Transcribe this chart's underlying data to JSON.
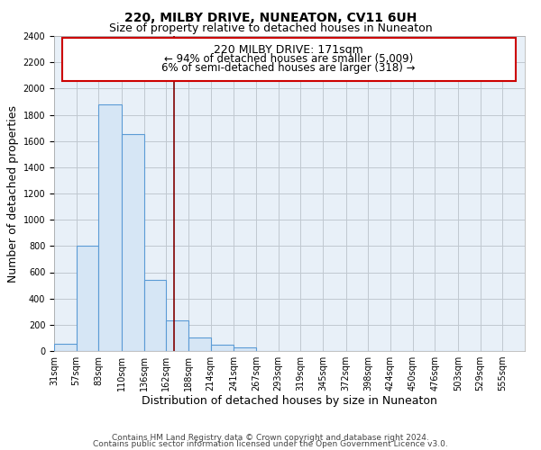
{
  "title": "220, MILBY DRIVE, NUNEATON, CV11 6UH",
  "subtitle": "Size of property relative to detached houses in Nuneaton",
  "xlabel": "Distribution of detached houses by size in Nuneaton",
  "ylabel": "Number of detached properties",
  "bar_left_edges": [
    31,
    57,
    83,
    110,
    136,
    162,
    188,
    214,
    241,
    267,
    293,
    319,
    345,
    372,
    398,
    424,
    450,
    476,
    503,
    529
  ],
  "bar_widths": [
    26,
    26,
    27,
    26,
    26,
    26,
    26,
    27,
    26,
    26,
    26,
    26,
    27,
    26,
    26,
    26,
    26,
    27,
    26,
    26
  ],
  "bar_heights": [
    55,
    800,
    1880,
    1650,
    540,
    235,
    105,
    50,
    30,
    0,
    0,
    0,
    0,
    0,
    0,
    0,
    0,
    0,
    0,
    0
  ],
  "bar_color": "#d6e6f5",
  "bar_edgecolor": "#5b9bd5",
  "vline_x": 171,
  "vline_color": "#800000",
  "ylim": [
    0,
    2400
  ],
  "yticks": [
    0,
    200,
    400,
    600,
    800,
    1000,
    1200,
    1400,
    1600,
    1800,
    2000,
    2200,
    2400
  ],
  "xlim": [
    31,
    581
  ],
  "xtick_labels": [
    "31sqm",
    "57sqm",
    "83sqm",
    "110sqm",
    "136sqm",
    "162sqm",
    "188sqm",
    "214sqm",
    "241sqm",
    "267sqm",
    "293sqm",
    "319sqm",
    "345sqm",
    "372sqm",
    "398sqm",
    "424sqm",
    "450sqm",
    "476sqm",
    "503sqm",
    "529sqm",
    "555sqm"
  ],
  "xtick_positions": [
    31,
    57,
    83,
    110,
    136,
    162,
    188,
    214,
    241,
    267,
    293,
    319,
    345,
    372,
    398,
    424,
    450,
    476,
    503,
    529,
    555
  ],
  "annotation_title": "220 MILBY DRIVE: 171sqm",
  "annotation_line1": "← 94% of detached houses are smaller (5,009)",
  "annotation_line2": "6% of semi-detached houses are larger (318) →",
  "footer_line1": "Contains HM Land Registry data © Crown copyright and database right 2024.",
  "footer_line2": "Contains public sector information licensed under the Open Government Licence v3.0.",
  "bg_color": "#ffffff",
  "plot_bg_color": "#e8f0f8",
  "grid_color": "#c0c8d0",
  "title_fontsize": 10,
  "subtitle_fontsize": 9,
  "axis_label_fontsize": 9,
  "tick_fontsize": 7,
  "footer_fontsize": 6.5,
  "ann_title_fontsize": 9,
  "ann_body_fontsize": 8.5
}
